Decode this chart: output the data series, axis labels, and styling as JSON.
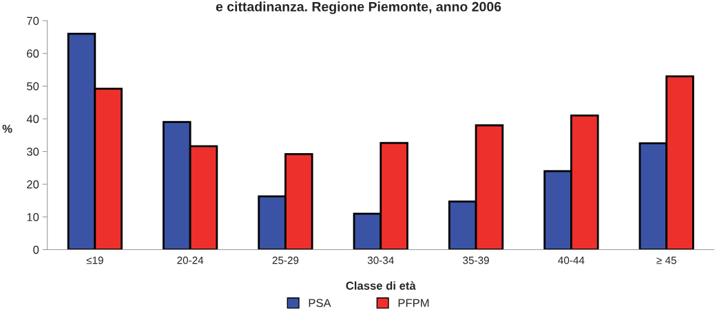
{
  "chart_data": {
    "type": "bar",
    "title": "e cittadinanza. Regione Piemonte, anno 2006",
    "xlabel": "Classe di età",
    "ylabel": "%",
    "categories": [
      "≤19",
      "20-24",
      "25-29",
      "30-34",
      "35-39",
      "40-44",
      "≥ 45"
    ],
    "series": [
      {
        "name": "PSA",
        "color": "#3a53a4",
        "values": [
          66,
          39,
          16.3,
          11,
          14.7,
          24,
          32.5
        ]
      },
      {
        "name": "PFPM",
        "color": "#ee302c",
        "values": [
          49.2,
          31.6,
          29.2,
          32.6,
          38,
          41,
          53
        ]
      }
    ],
    "ylim": [
      0,
      70
    ],
    "yticks": [
      0,
      10,
      20,
      30,
      40,
      50,
      60,
      70
    ],
    "grid": false,
    "legend": "bottom"
  }
}
